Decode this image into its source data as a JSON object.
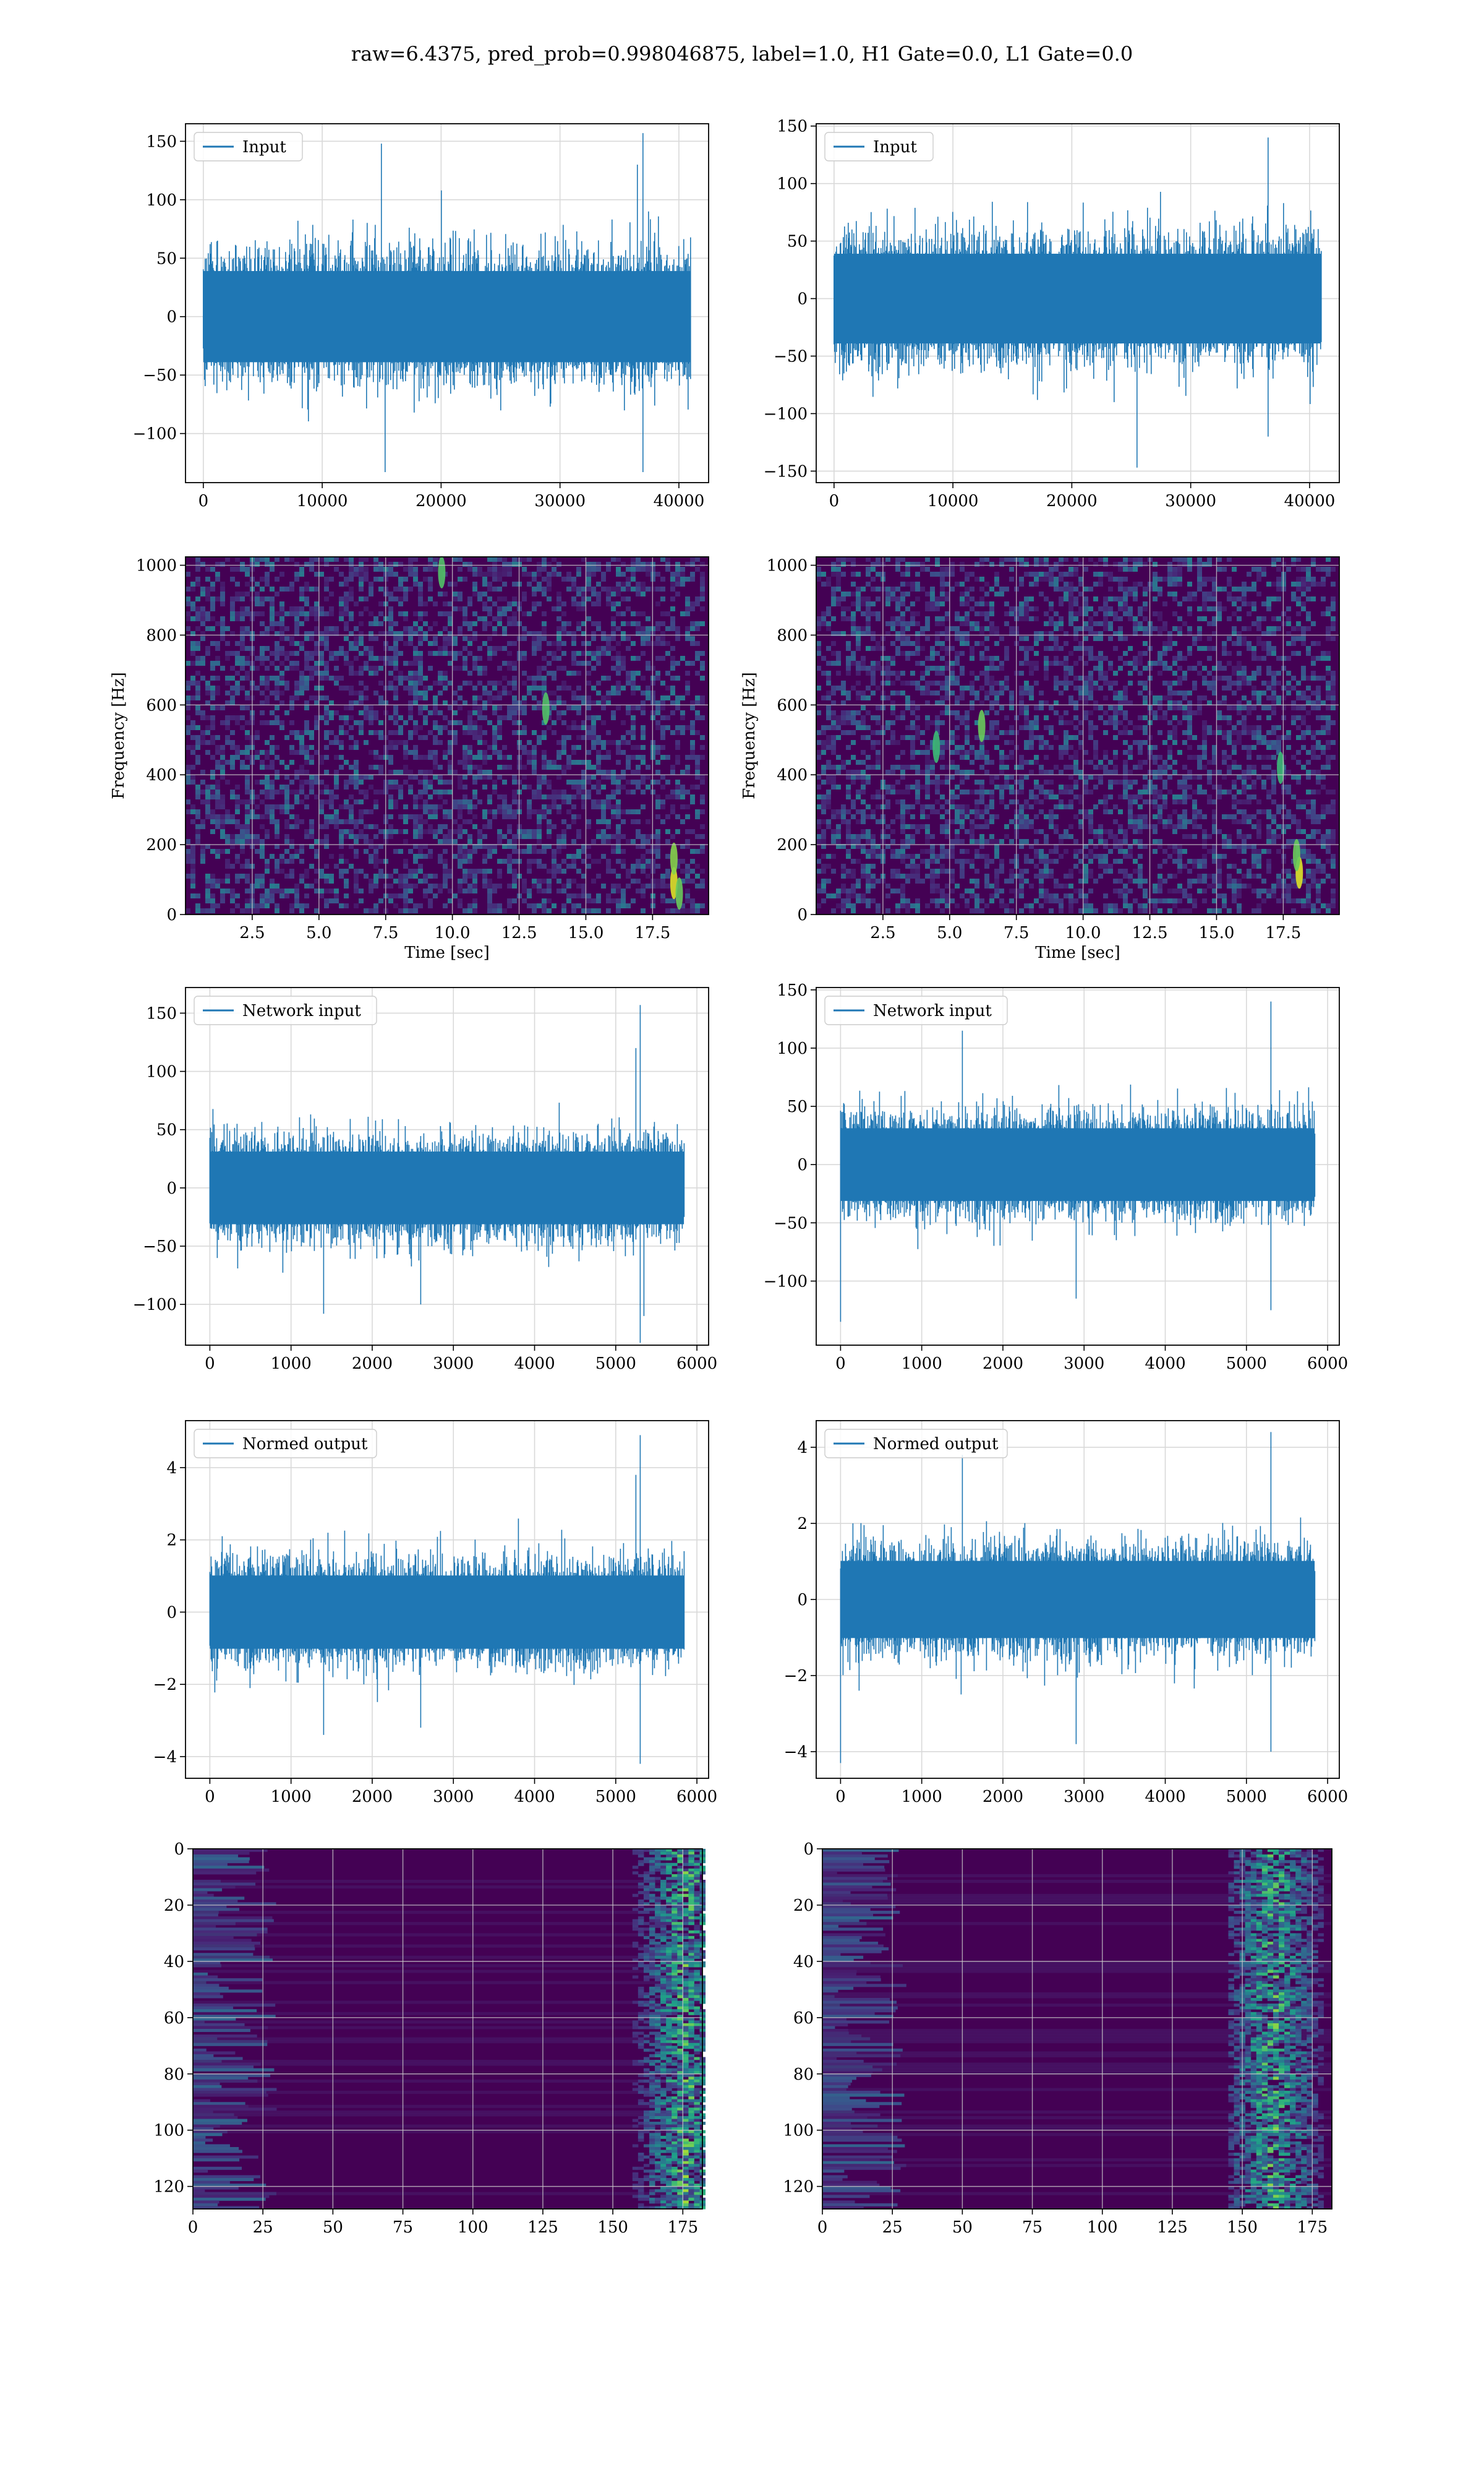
{
  "figure": {
    "suptitle": "raw=6.4375, pred_prob=0.998046875, label=1.0, H1 Gate=0.0, L1 Gate=0.0",
    "colors": {
      "line": "#1f77b4",
      "grid": "#d9d9d9",
      "viridis_bg": "#440154",
      "viridis_mid": "#31688e",
      "viridis_hi": "#35b779",
      "viridis_top": "#fde725"
    }
  },
  "chart_data": [
    {
      "id": "input-h1",
      "type": "line",
      "legend": "Input",
      "legend_position": "upper left",
      "xlim": [
        -1500,
        42500
      ],
      "ylim": [
        -142,
        165
      ],
      "xticks": [
        0,
        10000,
        20000,
        30000,
        40000
      ],
      "yticks": [
        -100,
        -50,
        0,
        50,
        100,
        150
      ],
      "grid": true,
      "signal": {
        "n_points": 40960,
        "core_range": [
          -50,
          50
        ],
        "min": -133,
        "max": 157,
        "spikes": [
          [
            15000,
            148
          ],
          [
            20000,
            108
          ],
          [
            37000,
            157
          ],
          [
            36500,
            130
          ],
          [
            15300,
            -133
          ],
          [
            37000,
            -133
          ]
        ]
      }
    },
    {
      "id": "input-l1",
      "type": "line",
      "legend": "Input",
      "legend_position": "upper left",
      "xlim": [
        -1500,
        42500
      ],
      "ylim": [
        -160,
        152
      ],
      "xticks": [
        0,
        10000,
        20000,
        30000,
        40000
      ],
      "yticks": [
        -150,
        -100,
        -50,
        0,
        50,
        100,
        150
      ],
      "grid": true,
      "signal": {
        "n_points": 40960,
        "core_range": [
          -50,
          50
        ],
        "min": -147,
        "max": 140,
        "spikes": [
          [
            36500,
            140
          ],
          [
            25500,
            -147
          ],
          [
            36500,
            -120
          ]
        ]
      }
    },
    {
      "id": "spec-h1",
      "type": "heatmap",
      "xlabel": "Time [sec]",
      "ylabel": "Frequency [Hz]",
      "xlim": [
        0,
        19.6
      ],
      "ylim": [
        0,
        1024
      ],
      "xticks": [
        2.5,
        5.0,
        7.5,
        10.0,
        12.5,
        15.0,
        17.5
      ],
      "xtick_labels": [
        "2.5",
        "5.0",
        "7.5",
        "10.0",
        "12.5",
        "15.0",
        "17.5"
      ],
      "yticks": [
        0,
        200,
        400,
        600,
        800,
        1000
      ],
      "colormap": "viridis",
      "grid": true,
      "hotspots": [
        [
          18.3,
          90,
          1.0
        ],
        [
          18.3,
          160,
          0.7
        ],
        [
          18.5,
          60,
          0.6
        ],
        [
          9.6,
          980,
          0.5
        ],
        [
          13.5,
          590,
          0.5
        ]
      ]
    },
    {
      "id": "spec-l1",
      "type": "heatmap",
      "xlabel": "Time [sec]",
      "ylabel": "Frequency [Hz]",
      "xlim": [
        0,
        19.6
      ],
      "ylim": [
        0,
        1024
      ],
      "xticks": [
        2.5,
        5.0,
        7.5,
        10.0,
        12.5,
        15.0,
        17.5
      ],
      "xtick_labels": [
        "2.5",
        "5.0",
        "7.5",
        "10.0",
        "12.5",
        "15.0",
        "17.5"
      ],
      "yticks": [
        0,
        200,
        400,
        600,
        800,
        1000
      ],
      "colormap": "viridis",
      "grid": true,
      "hotspots": [
        [
          18.1,
          120,
          1.0
        ],
        [
          18.0,
          170,
          0.6
        ],
        [
          6.2,
          540,
          0.6
        ],
        [
          17.4,
          420,
          0.4
        ],
        [
          4.5,
          480,
          0.4
        ]
      ]
    },
    {
      "id": "netin-h1",
      "type": "line",
      "legend": "Network input",
      "legend_position": "upper left",
      "xlim": [
        -300,
        6144
      ],
      "ylim": [
        -135,
        172
      ],
      "xticks": [
        0,
        1000,
        2000,
        3000,
        4000,
        5000,
        6000
      ],
      "yticks": [
        -100,
        -50,
        0,
        50,
        100,
        150
      ],
      "grid": true,
      "signal": {
        "n_points": 5840,
        "core_range": [
          -40,
          40
        ],
        "min": -133,
        "max": 157,
        "spikes": [
          [
            5300,
            157
          ],
          [
            5300,
            -133
          ],
          [
            5250,
            120
          ],
          [
            5350,
            -110
          ],
          [
            2600,
            -100
          ],
          [
            1400,
            -108
          ]
        ]
      }
    },
    {
      "id": "netin-l1",
      "type": "line",
      "legend": "Network input",
      "legend_position": "upper left",
      "xlim": [
        -300,
        6144
      ],
      "ylim": [
        -155,
        152
      ],
      "xticks": [
        0,
        1000,
        2000,
        3000,
        4000,
        5000,
        6000
      ],
      "yticks": [
        -100,
        -50,
        0,
        50,
        100,
        150
      ],
      "grid": true,
      "signal": {
        "n_points": 5840,
        "core_range": [
          -40,
          40
        ],
        "min": -135,
        "max": 140,
        "spikes": [
          [
            0,
            -135
          ],
          [
            5300,
            140
          ],
          [
            5300,
            -125
          ],
          [
            1500,
            115
          ],
          [
            2900,
            -115
          ]
        ]
      }
    },
    {
      "id": "normed-h1",
      "type": "line",
      "legend": "Normed output",
      "legend_position": "upper left",
      "xlim": [
        -300,
        6144
      ],
      "ylim": [
        -4.6,
        5.3
      ],
      "xticks": [
        0,
        1000,
        2000,
        3000,
        4000,
        5000,
        6000
      ],
      "yticks": [
        -4,
        -2,
        0,
        2,
        4
      ],
      "grid": true,
      "signal": {
        "n_points": 5840,
        "core_range": [
          -1.3,
          1.3
        ],
        "min": -4.2,
        "max": 4.9,
        "spikes": [
          [
            5300,
            4.9
          ],
          [
            5300,
            -4.2
          ],
          [
            5250,
            3.8
          ],
          [
            1400,
            -3.4
          ],
          [
            2600,
            -3.2
          ]
        ]
      }
    },
    {
      "id": "normed-l1",
      "type": "line",
      "legend": "Normed output",
      "legend_position": "upper left",
      "xlim": [
        -300,
        6144
      ],
      "ylim": [
        -4.7,
        4.7
      ],
      "xticks": [
        0,
        1000,
        2000,
        3000,
        4000,
        5000,
        6000
      ],
      "yticks": [
        -4,
        -2,
        0,
        2,
        4
      ],
      "grid": true,
      "signal": {
        "n_points": 5840,
        "core_range": [
          -1.3,
          1.3
        ],
        "min": -4.3,
        "max": 4.4,
        "spikes": [
          [
            0,
            -4.3
          ],
          [
            5300,
            4.4
          ],
          [
            5300,
            -4.0
          ],
          [
            1500,
            3.8
          ],
          [
            2900,
            -3.8
          ]
        ]
      }
    },
    {
      "id": "feat-h1",
      "type": "heatmap",
      "xlim": [
        0,
        182
      ],
      "ylim": [
        128,
        0
      ],
      "xticks": [
        0,
        25,
        50,
        75,
        100,
        125,
        150,
        175
      ],
      "xtick_labels": [
        "0",
        "25",
        "50",
        "75",
        "100",
        "125",
        "150",
        "175"
      ],
      "yticks": [
        0,
        20,
        40,
        60,
        80,
        100,
        120
      ],
      "colormap": "viridis",
      "grid": true,
      "bright_band": {
        "x_start": 145,
        "x_end": 182,
        "peak_x": 175
      }
    },
    {
      "id": "feat-l1",
      "type": "heatmap",
      "xlim": [
        0,
        182
      ],
      "ylim": [
        128,
        0
      ],
      "xticks": [
        0,
        25,
        50,
        75,
        100,
        125,
        150,
        175
      ],
      "xtick_labels": [
        "0",
        "25",
        "50",
        "75",
        "100",
        "125",
        "150",
        "175"
      ],
      "yticks": [
        0,
        20,
        40,
        60,
        80,
        100,
        120
      ],
      "colormap": "viridis",
      "grid": true,
      "bright_band": {
        "x_start": 145,
        "x_end": 180,
        "peak_x": 160
      }
    }
  ]
}
